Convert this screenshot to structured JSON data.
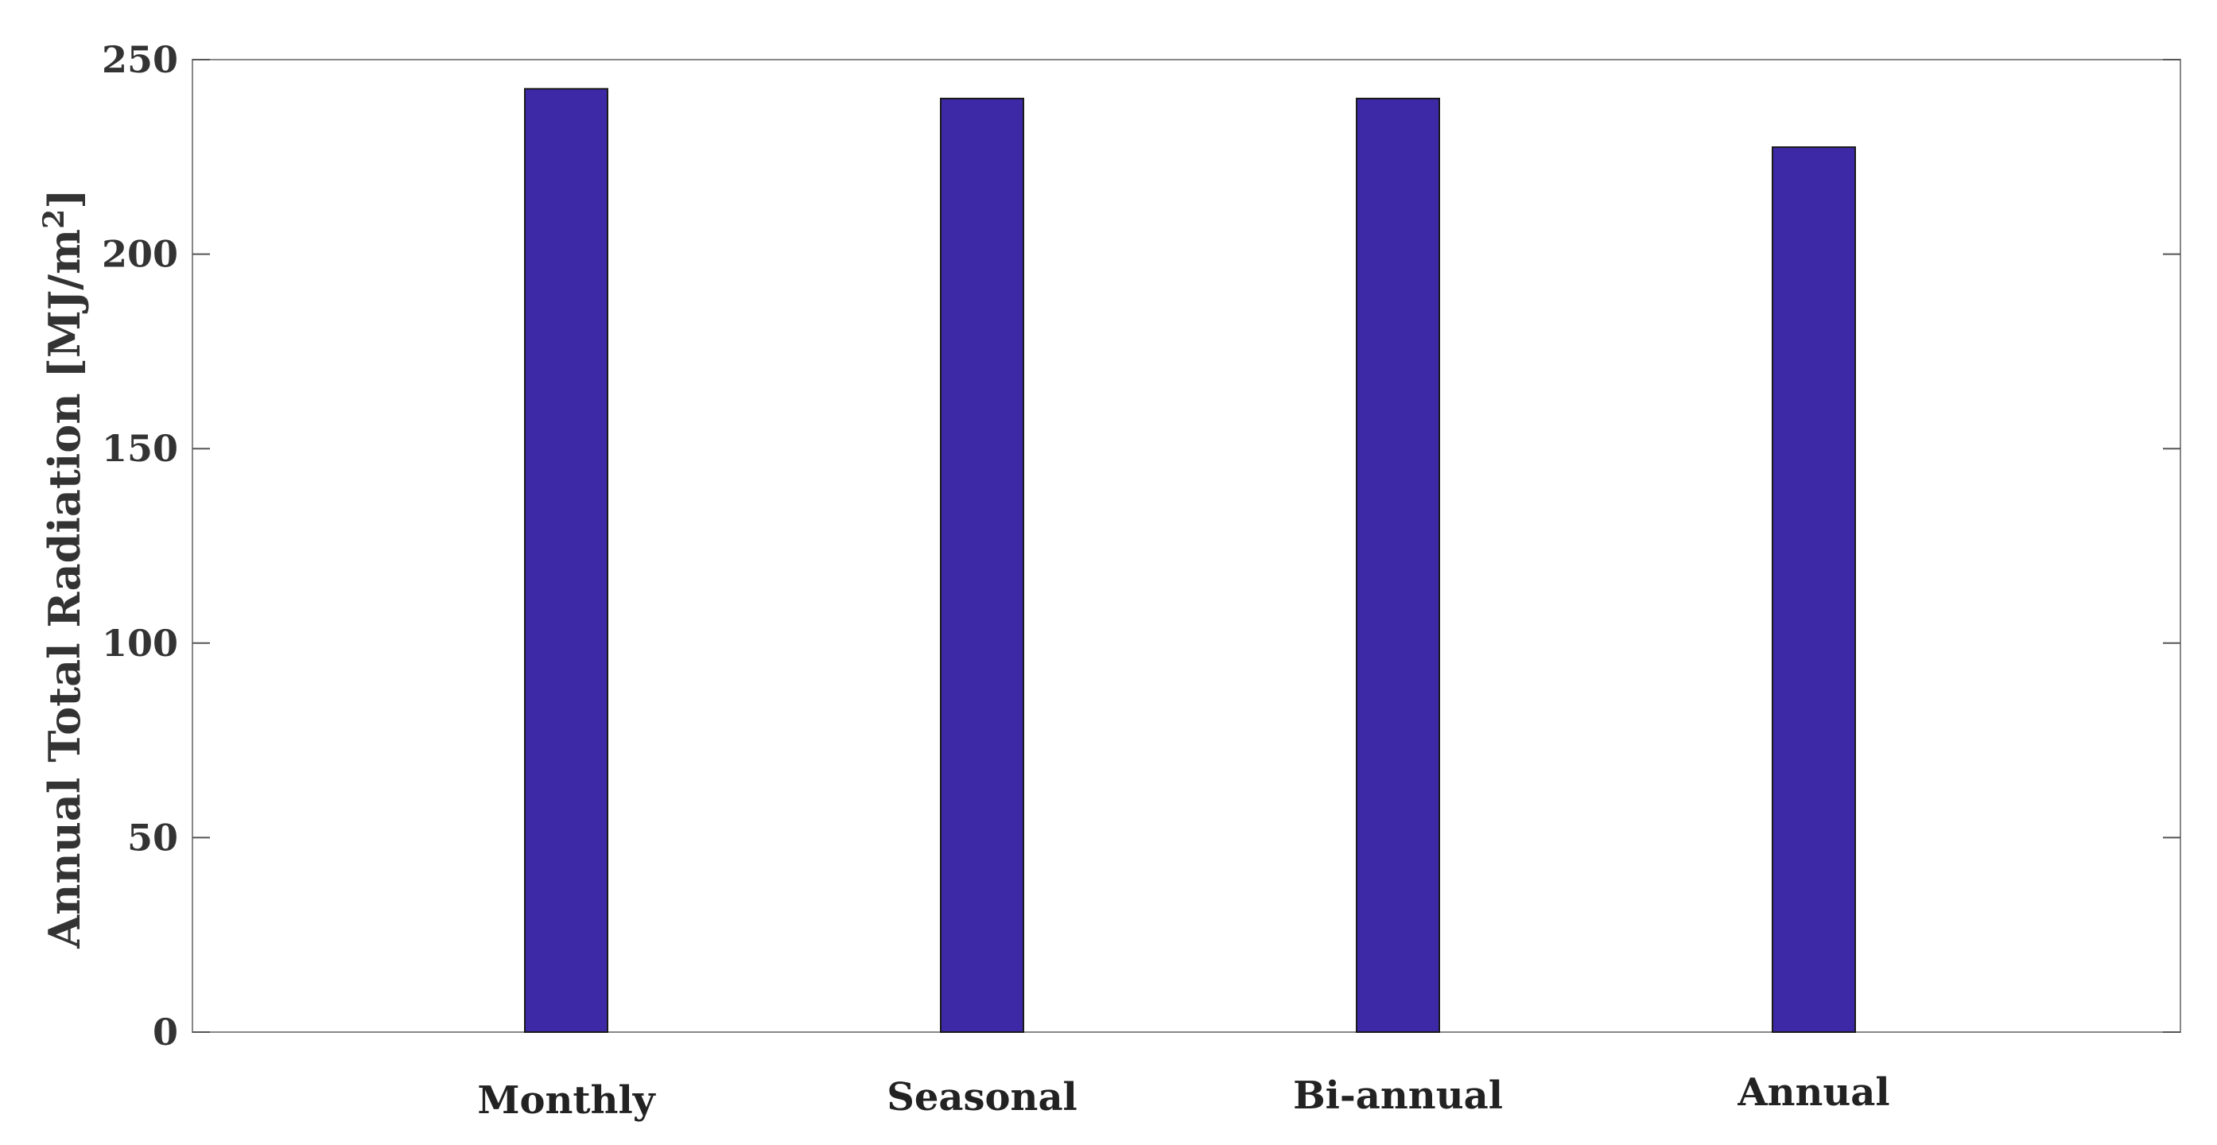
{
  "chart_data": {
    "type": "bar",
    "categories": [
      "Monthly",
      "Seasonal",
      "Bi-annual",
      "Annual"
    ],
    "values": [
      242.5,
      240,
      240,
      227.5
    ],
    "title": "",
    "xlabel": "",
    "ylabel_main": "Annual Total Radiation [MJ/m",
    "ylabel_sup": "2",
    "ylabel_tail": "]",
    "ylim": [
      0,
      250
    ],
    "yticks": [
      0,
      50,
      100,
      150,
      200,
      250
    ],
    "ytick_labels": [
      "0",
      "50",
      "100",
      "150",
      "200",
      "250"
    ],
    "grid": false,
    "legend": "none",
    "bar_color": "#3D28A6",
    "bar_edge_color": "#1a1a1a",
    "axis_color": "#888888"
  }
}
